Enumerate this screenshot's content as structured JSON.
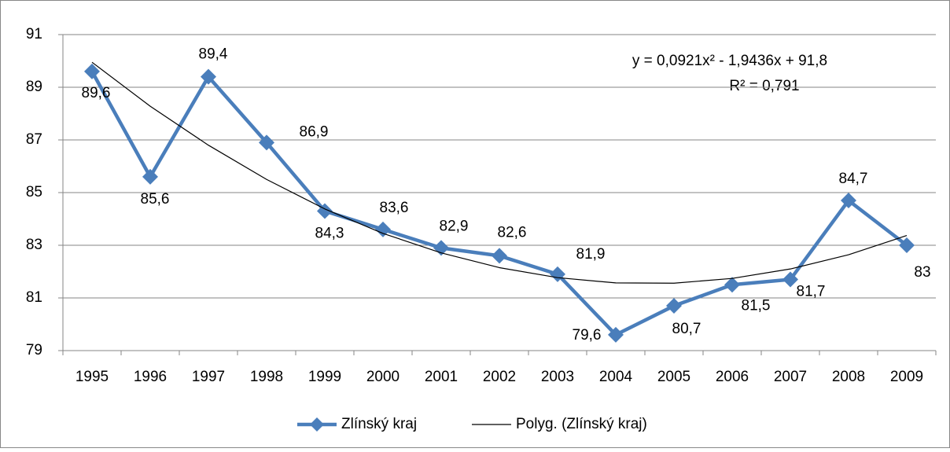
{
  "chart_data": {
    "type": "line",
    "categories": [
      "1995",
      "1996",
      "1997",
      "1998",
      "1999",
      "2000",
      "2001",
      "2002",
      "2003",
      "2004",
      "2005",
      "2006",
      "2007",
      "2008",
      "2009"
    ],
    "series": [
      {
        "name": "Zlínský kraj",
        "color": "#4a7ebb",
        "values": [
          89.6,
          85.6,
          89.4,
          86.9,
          84.3,
          83.6,
          82.9,
          82.6,
          81.9,
          79.6,
          80.7,
          81.5,
          81.7,
          84.7,
          83
        ],
        "value_labels": [
          "89,6",
          "85,6",
          "89,4",
          "86,9",
          "84,3",
          "83,6",
          "82,9",
          "82,6",
          "81,9",
          "79,6",
          "80,7",
          "81,5",
          "81,7",
          "84,7",
          "83"
        ]
      },
      {
        "name": "Polyg. (Zlínský kraj)",
        "color": "#000000",
        "values": [
          89.95,
          88.28,
          86.8,
          85.5,
          84.38,
          83.45,
          82.71,
          82.15,
          81.77,
          81.57,
          81.56,
          81.74,
          82.1,
          82.64,
          83.37
        ]
      }
    ],
    "annotations": [
      "y = 0,0921x² - 1,9436x + 91,8",
      "R² = 0,791"
    ],
    "ylim": [
      79,
      91
    ],
    "yticks": [
      79,
      81,
      83,
      85,
      87,
      89,
      91
    ],
    "grid": true,
    "legend": "bottom"
  }
}
